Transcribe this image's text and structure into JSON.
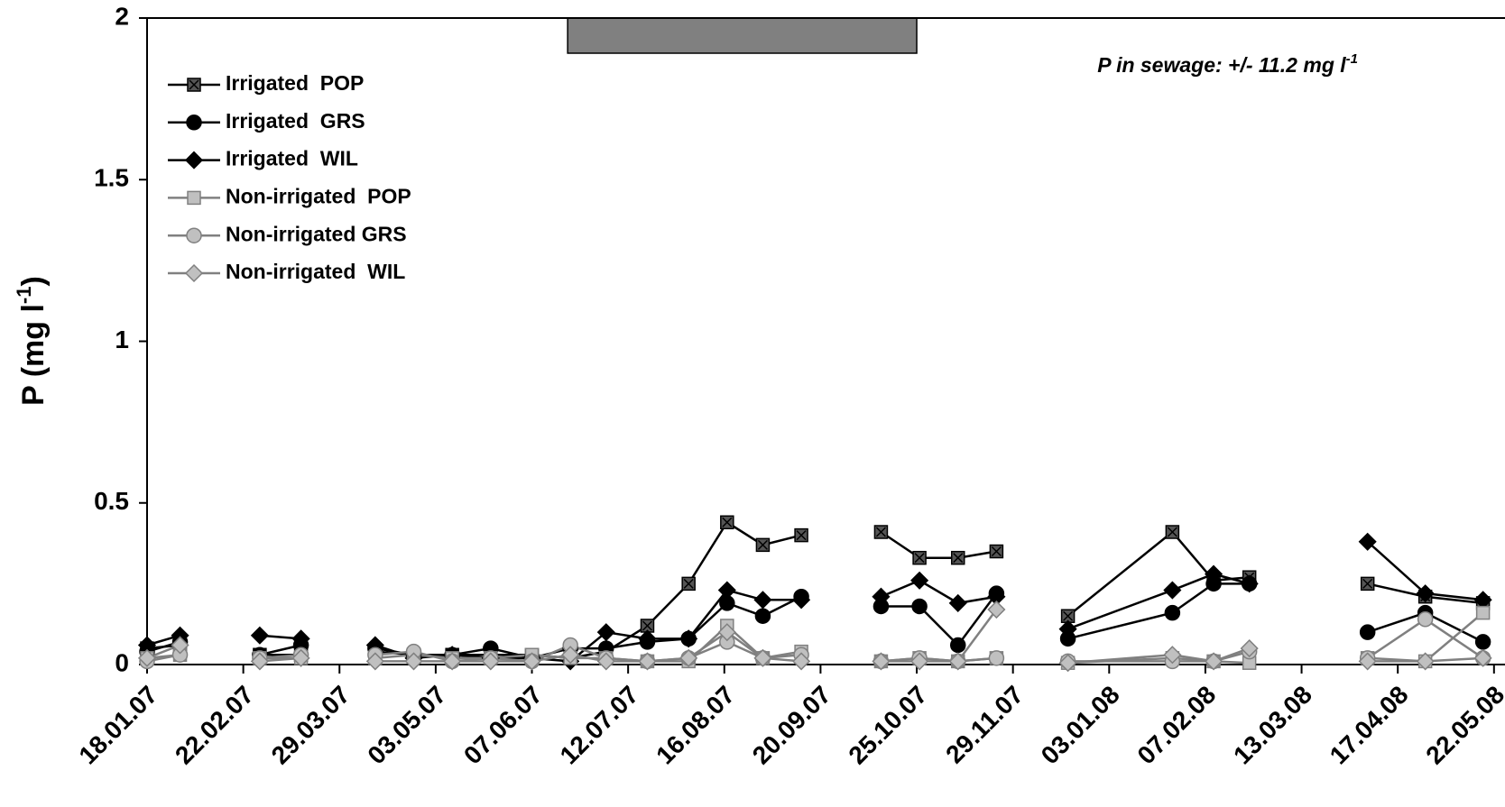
{
  "chart_data": {
    "type": "line",
    "y_label": {
      "text": "P (mg l",
      "sup": "-1",
      "end": ")"
    },
    "annotation": {
      "text": "P in sewage: +/- 11.2 mg l",
      "sup": "-1"
    },
    "shaded_period": [
      "20.06.07",
      "25.10.07"
    ],
    "shaded_color": "#808080",
    "xlim": [
      "18.01.07",
      "26.05.08"
    ],
    "xticks": [
      "18.01.07",
      "22.02.07",
      "29.03.07",
      "03.05.07",
      "07.06.07",
      "12.07.07",
      "16.08.07",
      "20.09.07",
      "25.10.07",
      "29.11.07",
      "03.01.08",
      "07.02.08",
      "13.03.08",
      "17.04.08",
      "22.05.08"
    ],
    "ylim": [
      0,
      2
    ],
    "yticks": [
      0,
      0.5,
      1,
      1.5,
      2
    ],
    "legend": "upper left",
    "x": [
      "18.01.07",
      "30.01.07",
      null,
      "28.02.07",
      "15.03.07",
      null,
      "11.04.07",
      "25.04.07",
      "09.05.07",
      "23.05.07",
      "07.06.07",
      "21.06.07",
      "04.07.07",
      "19.07.07",
      "03.08.07",
      "17.08.07",
      "30.08.07",
      "13.09.07",
      null,
      "12.10.07",
      "26.10.07",
      "09.11.07",
      "23.11.07",
      null,
      "19.12.07",
      "26.01.08",
      "10.02.08",
      "23.02.08",
      null,
      "06.04.08",
      "27.04.08",
      "18.05.08"
    ],
    "series": [
      {
        "name": "Irrigated  POP",
        "color": "#000000",
        "marker": "square-x",
        "marker_fill": "#555555",
        "values": [
          0.05,
          0.06,
          null,
          0.03,
          0.03,
          null,
          0.04,
          0.03,
          0.03,
          0.03,
          0.03,
          0.02,
          0.04,
          0.12,
          0.25,
          0.44,
          0.37,
          0.4,
          null,
          0.41,
          0.33,
          0.33,
          0.35,
          null,
          0.15,
          0.41,
          0.26,
          0.27,
          null,
          0.25,
          0.21,
          0.19
        ]
      },
      {
        "name": "Irrigated  GRS",
        "color": "#000000",
        "marker": "circle",
        "marker_fill": "#000000",
        "values": [
          0.04,
          0.07,
          null,
          0.03,
          0.06,
          null,
          0.05,
          0.03,
          0.03,
          0.05,
          0.02,
          0.05,
          0.05,
          0.07,
          0.08,
          0.19,
          0.15,
          0.21,
          null,
          0.18,
          0.18,
          0.06,
          0.22,
          null,
          0.08,
          0.16,
          0.25,
          0.25,
          null,
          0.1,
          0.16,
          0.07
        ]
      },
      {
        "name": "Irrigated  WIL",
        "color": "#000000",
        "marker": "diamond",
        "marker_fill": "#000000",
        "values": [
          0.06,
          0.09,
          null,
          0.09,
          0.08,
          null,
          0.06,
          0.02,
          0.03,
          0.02,
          0.02,
          0.01,
          0.1,
          0.08,
          0.08,
          0.23,
          0.2,
          0.2,
          null,
          0.21,
          0.26,
          0.19,
          0.21,
          null,
          0.11,
          0.23,
          0.28,
          0.25,
          null,
          0.38,
          0.22,
          0.2
        ]
      },
      {
        "name": "Non-irrigated  POP",
        "color": "#808080",
        "marker": "square",
        "marker_fill": "#c0c0c0",
        "values": [
          0.02,
          0.03,
          null,
          0.02,
          0.02,
          null,
          0.02,
          0.03,
          0.02,
          0.02,
          0.03,
          0.02,
          0.02,
          0.01,
          0.01,
          0.12,
          0.02,
          0.04,
          null,
          0.01,
          0.02,
          0.01,
          0.02,
          null,
          0.005,
          0.02,
          0.01,
          0.005,
          null,
          0.02,
          0.01,
          0.16
        ]
      },
      {
        "name": "Non-irrigated GRS",
        "color": "#808080",
        "marker": "circle",
        "marker_fill": "#c0c0c0",
        "values": [
          0.01,
          0.03,
          null,
          0.02,
          0.03,
          null,
          0.03,
          0.04,
          0.01,
          0.02,
          0.01,
          0.06,
          0.02,
          0.01,
          0.02,
          0.07,
          0.02,
          0.03,
          null,
          0.01,
          0.02,
          0.01,
          0.02,
          null,
          0.01,
          0.01,
          0.01,
          0.04,
          null,
          0.02,
          0.14,
          0.02
        ]
      },
      {
        "name": "Non-irrigated  WIL",
        "color": "#808080",
        "marker": "diamond",
        "marker_fill": "#c0c0c0",
        "values": [
          0.02,
          0.06,
          null,
          0.01,
          0.02,
          null,
          0.01,
          0.01,
          0.01,
          0.01,
          0.01,
          0.03,
          0.01,
          0.01,
          0.02,
          0.1,
          0.02,
          0.01,
          null,
          0.01,
          0.01,
          0.01,
          0.17,
          null,
          0.005,
          0.03,
          0.01,
          0.05,
          null,
          0.01,
          0.01,
          0.02
        ]
      }
    ]
  }
}
